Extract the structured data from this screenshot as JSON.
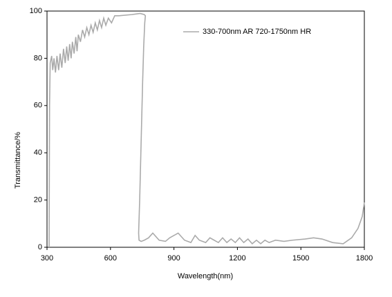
{
  "chart_data": {
    "type": "line",
    "xlabel": "Wavelength(nm)",
    "ylabel": "Transmittance/%",
    "x": [
      310,
      312,
      315,
      322,
      327,
      333,
      340,
      347,
      355,
      362,
      370,
      378,
      386,
      393,
      400,
      407,
      414,
      420,
      428,
      436,
      442,
      448,
      458,
      468,
      478,
      488,
      498,
      508,
      518,
      528,
      538,
      548,
      558,
      568,
      578,
      590,
      605,
      620,
      640,
      700,
      740,
      760,
      765,
      762,
      757,
      752,
      745,
      738,
      733,
      735,
      745,
      760,
      780,
      800,
      830,
      860,
      880,
      920,
      950,
      980,
      1000,
      1020,
      1050,
      1070,
      1090,
      1110,
      1130,
      1150,
      1170,
      1190,
      1210,
      1230,
      1250,
      1270,
      1290,
      1310,
      1330,
      1350,
      1380,
      1420,
      1460,
      1520,
      1560,
      1600,
      1650,
      1700,
      1740,
      1770,
      1790,
      1800
    ],
    "series": [
      {
        "name": "330-700nm AR  720-1750nm HR",
        "color": "#aaaaaa",
        "values": [
          0,
          60,
          78,
          81,
          75,
          80,
          74,
          81,
          75,
          82,
          76,
          84,
          78,
          85,
          79,
          86,
          80,
          87,
          82,
          89,
          83,
          90,
          87,
          92,
          89,
          93,
          90,
          94,
          91,
          95,
          92,
          96,
          93,
          97,
          94,
          97,
          95,
          98,
          98,
          98.5,
          99,
          98.5,
          98,
          95,
          85,
          70,
          45,
          20,
          6,
          3,
          2.5,
          3,
          4,
          6,
          3,
          2.5,
          4,
          6,
          3,
          2,
          5,
          3,
          2,
          4,
          3,
          2,
          4,
          2,
          3.5,
          2,
          4,
          2,
          3.5,
          1.5,
          3,
          1.5,
          3,
          2,
          3,
          2.5,
          3,
          3.5,
          4,
          3.5,
          2,
          1.5,
          4,
          8,
          13,
          19
        ]
      }
    ],
    "xlim": [
      300,
      1800
    ],
    "xticks": [
      300,
      600,
      900,
      1200,
      1500,
      1800
    ],
    "ylim": [
      0,
      100
    ],
    "yticks": [
      0,
      20,
      40,
      60,
      80,
      100
    ],
    "grid": false,
    "legend": "upper right"
  }
}
